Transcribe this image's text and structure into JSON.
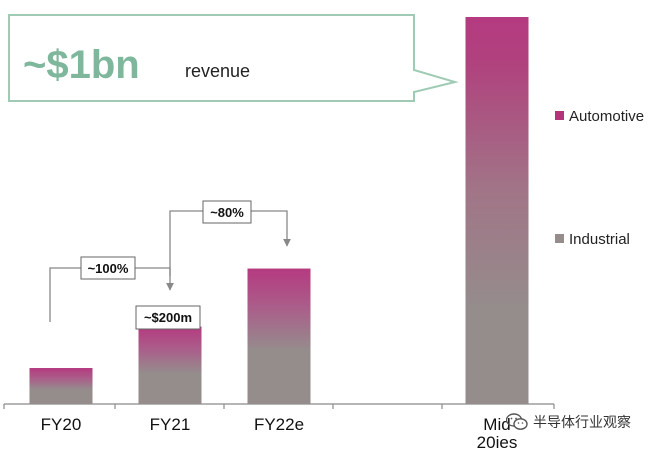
{
  "chart_data": {
    "type": "bar",
    "stacked": true,
    "categories": [
      "FY20",
      "FY21",
      "FY22e",
      "",
      "Mid\n20ies"
    ],
    "series": [
      {
        "name": "Automotive",
        "color": "#b5357a",
        "values": [
          3,
          45,
          42,
          null,
          78
        ]
      },
      {
        "name": "Industrial",
        "color": "#958c8c",
        "values": [
          90,
          155,
          308,
          null,
          922
        ]
      }
    ],
    "ylim": [
      0,
      1000
    ],
    "title": "",
    "xlabel": "",
    "ylabel": "",
    "legend": {
      "position": "right",
      "entries": [
        "Automotive",
        "Industrial"
      ]
    },
    "callout": {
      "big": "~$1bn",
      "small": "revenue",
      "color": "#7fb79c"
    },
    "annotations": [
      {
        "label": "~$200m",
        "target": "FY21"
      },
      {
        "label": "~100%",
        "from": "FY20",
        "to": "FY21"
      },
      {
        "label": "~80%",
        "from": "FY21",
        "to": "FY22e"
      }
    ],
    "grid": false
  },
  "watermark": {
    "text": "半导体行业观察",
    "icon": "wechat-icon"
  }
}
